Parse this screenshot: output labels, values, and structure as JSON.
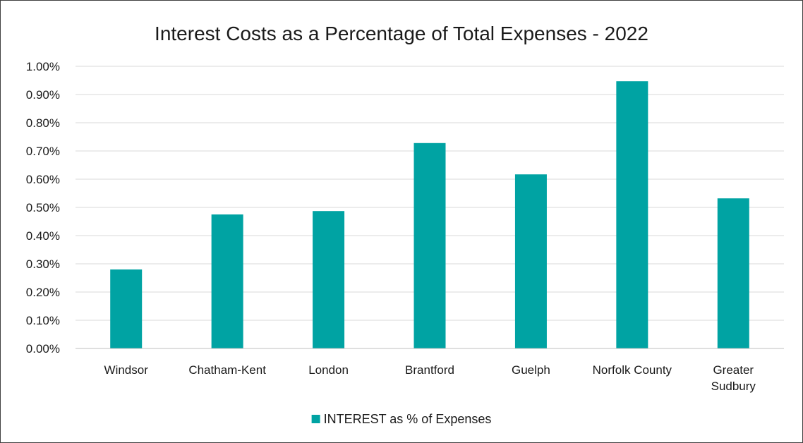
{
  "chart_data": {
    "type": "bar",
    "title": "Interest Costs as a Percentage of Total Expenses - 2022",
    "xlabel": "",
    "ylabel": "",
    "categories": [
      "Windsor",
      "Chatham-Kent",
      "London",
      "Brantford",
      "Guelph",
      "Norfolk County",
      "Greater Sudbury"
    ],
    "category_lines": [
      [
        "Windsor"
      ],
      [
        "Chatham-Kent"
      ],
      [
        "London"
      ],
      [
        "Brantford"
      ],
      [
        "Guelph"
      ],
      [
        "Norfolk County"
      ],
      [
        "Greater",
        "Sudbury"
      ]
    ],
    "series": [
      {
        "name": "INTEREST as % of Expenses",
        "values": [
          0.28,
          0.475,
          0.487,
          0.728,
          0.617,
          0.947,
          0.532
        ],
        "color": "#00A3A3"
      }
    ],
    "ylim": [
      0,
      1.0
    ],
    "yticks": [
      "0.00%",
      "0.10%",
      "0.20%",
      "0.30%",
      "0.40%",
      "0.50%",
      "0.60%",
      "0.70%",
      "0.80%",
      "0.90%",
      "1.00%"
    ],
    "value_unit": "%",
    "grid": true,
    "legend_position": "bottom"
  }
}
